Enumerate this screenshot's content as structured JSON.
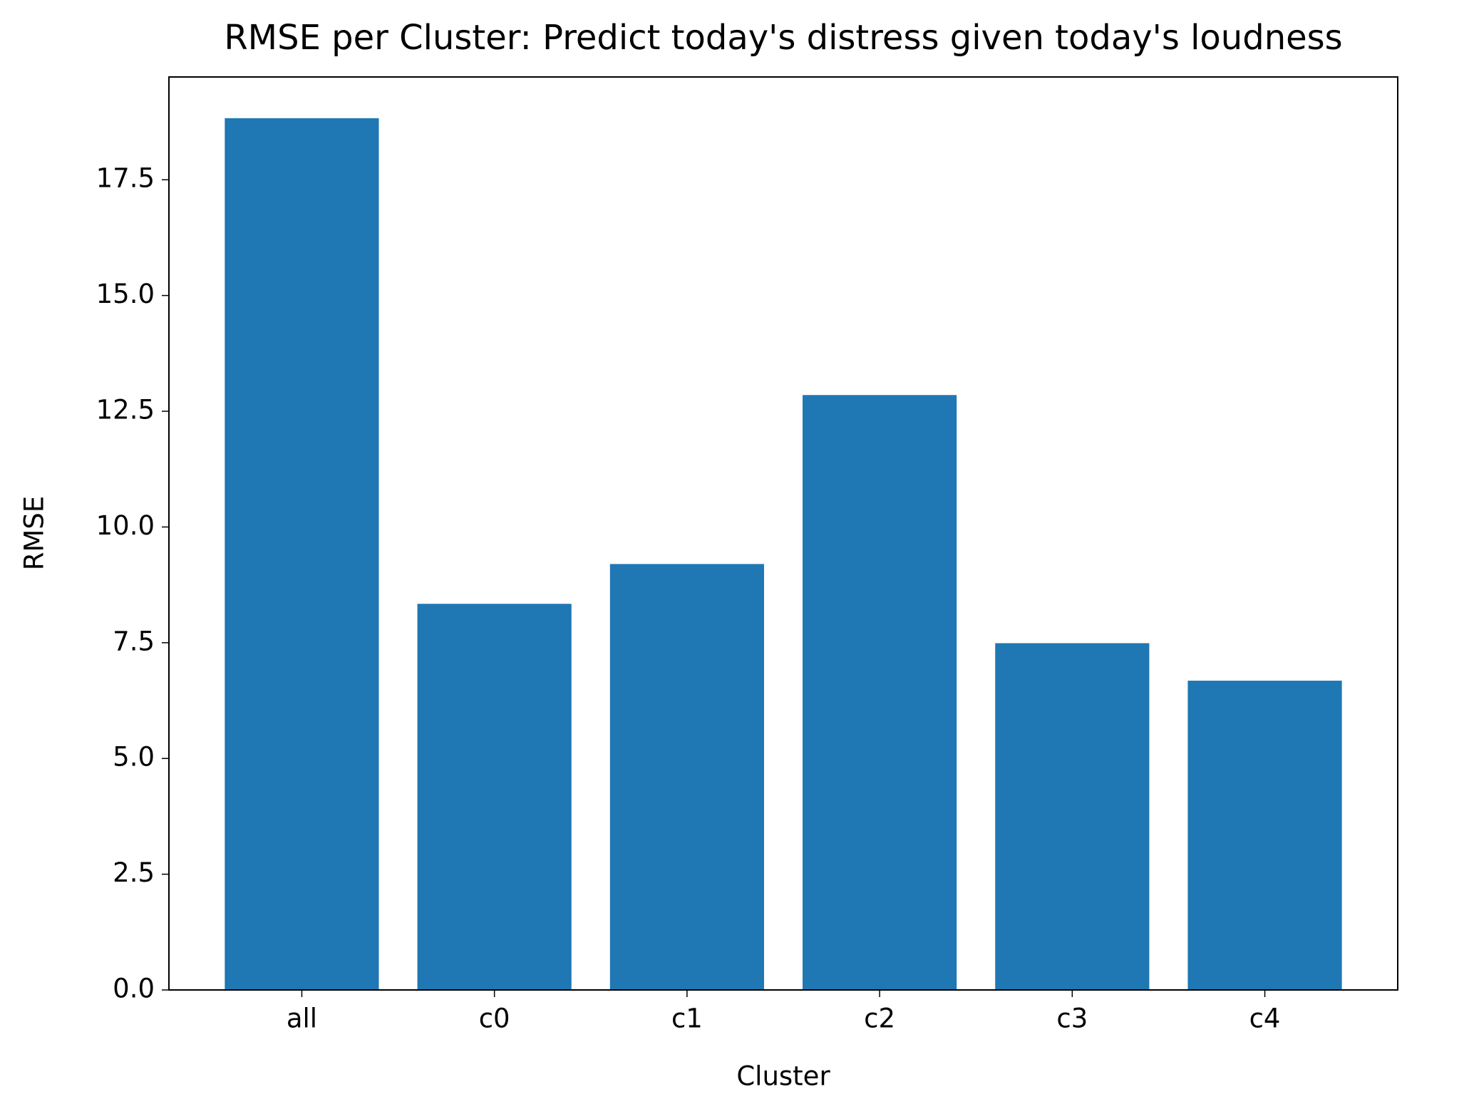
{
  "chart_data": {
    "type": "bar",
    "title": "RMSE per Cluster: Predict today's distress given today's loudness",
    "x_label": "Cluster",
    "y_label": "RMSE",
    "categories": [
      "all",
      "c0",
      "c1",
      "c2",
      "c3",
      "c4"
    ],
    "values": [
      18.83,
      8.34,
      9.2,
      12.85,
      7.49,
      6.68
    ],
    "color": "#1f77b4",
    "ylim": [
      0,
      19.72
    ],
    "yticks": [
      {
        "value": 0,
        "label": "0.0"
      },
      2.5,
      {
        "value": 5,
        "label": "5.0"
      },
      7.5,
      {
        "value": 10,
        "label": "10.0"
      },
      12.5,
      {
        "value": 15,
        "label": "15.0"
      },
      17.5
    ],
    "grid": false
  }
}
